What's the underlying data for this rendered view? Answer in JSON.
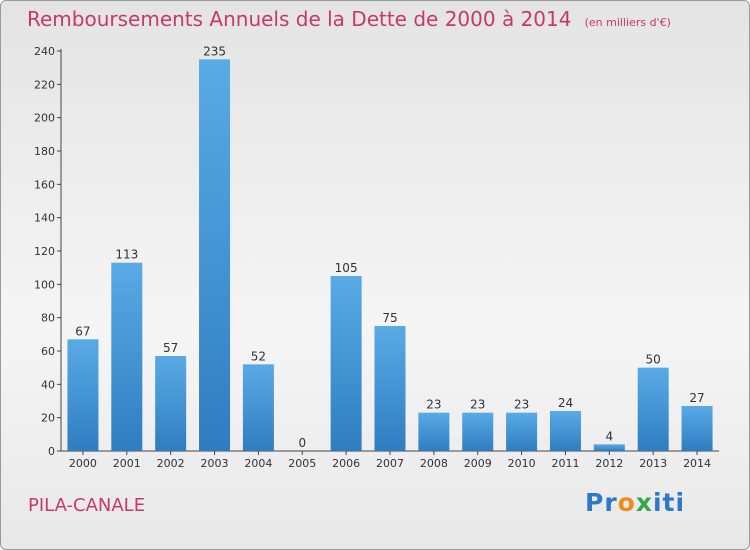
{
  "header": {
    "title": "Remboursements Annuels de la Dette de 2000 à 2014",
    "unit": "(en milliers d'€)"
  },
  "footer": {
    "commune": "PILA-CANALE",
    "brand_parts": [
      "Pr",
      "o",
      "x",
      "iti"
    ]
  },
  "colors": {
    "accent": "#c8386a",
    "bar_light": "#5aaae6",
    "bar_dark": "#2f7dc0",
    "brand_blue": "#2e78c8",
    "brand_orange": "#ef8a1d",
    "brand_green": "#35a84a"
  },
  "chart_data": {
    "type": "bar",
    "title": "Remboursements Annuels de la Dette de 2000 à 2014",
    "subtitle": "(en milliers d'€)",
    "categories": [
      "2000",
      "2001",
      "2002",
      "2003",
      "2004",
      "2005",
      "2006",
      "2007",
      "2008",
      "2009",
      "2010",
      "2011",
      "2012",
      "2013",
      "2014"
    ],
    "values": [
      67,
      113,
      57,
      235,
      52,
      0,
      105,
      75,
      23,
      23,
      23,
      24,
      4,
      50,
      27
    ],
    "y_ticks": [
      0,
      20,
      40,
      60,
      80,
      100,
      120,
      140,
      160,
      180,
      200,
      220,
      240
    ],
    "ylim": [
      0,
      240
    ],
    "grid": false,
    "legend": "none"
  }
}
